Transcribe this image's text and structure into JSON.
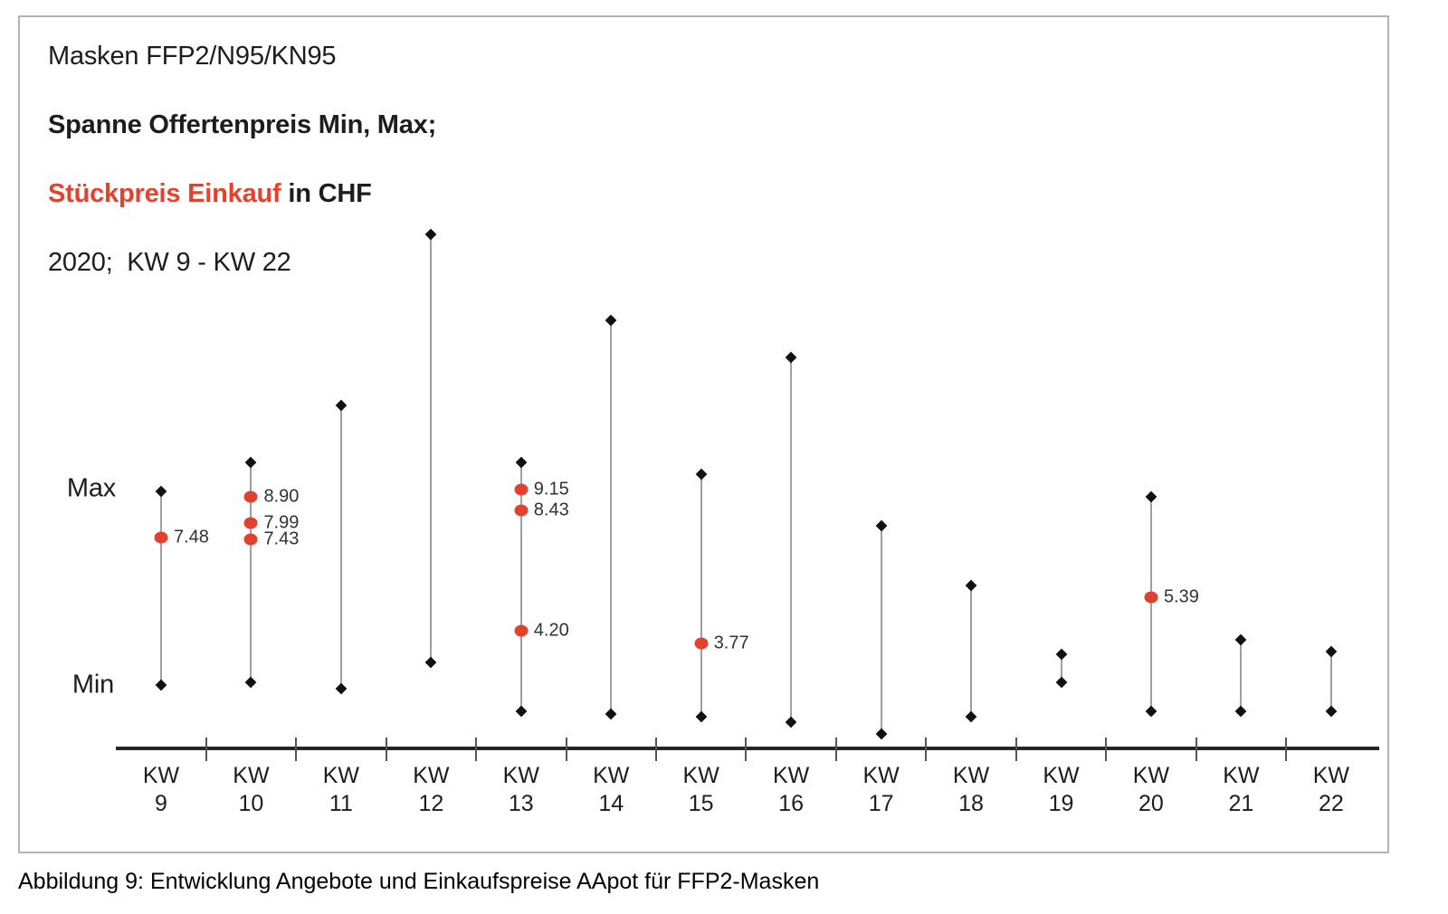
{
  "title": {
    "line1": "Masken FFP2/N95/KN95",
    "line2": "Spanne Offertenpreis Min, Max;",
    "line3_red": "Stückpreis Einkauf",
    "line3_rest": " in CHF",
    "line4": "2020;  KW 9 - KW 22"
  },
  "axis": {
    "max_label": "Max",
    "min_label": "Min"
  },
  "caption": "Abbildung 9: Entwicklung Angebote und Einkaufspreise AApot für FFP2-Masken",
  "colors": {
    "title_red": "#e8402d",
    "purchase_dot_red": "#e2412f",
    "marker_black": "#111111",
    "range_line_gray": "#a0a0a0",
    "axis_black": "#262626",
    "box_border_gray": "#b3b3b3"
  },
  "chart_data": {
    "type": "scatter",
    "subtype": "min-max-range-dumbbell",
    "title": "Masken FFP2/N95/KN95 — Spanne Offertenpreis Min, Max; Stückpreis Einkauf in CHF; 2020; KW 9 - KW 22",
    "unit": "CHF",
    "grid": false,
    "legend": "none",
    "ylim": [
      0,
      19
    ],
    "categories": [
      "KW 9",
      "KW 10",
      "KW 11",
      "KW 12",
      "KW 13",
      "KW 14",
      "KW 15",
      "KW 16",
      "KW 17",
      "KW 18",
      "KW 19",
      "KW 20",
      "KW 21",
      "KW 22"
    ],
    "series": [
      {
        "name": "Offertenpreis Max",
        "values": [
          9.1,
          10.1,
          12.1,
          18.1,
          10.1,
          15.1,
          9.7,
          13.8,
          7.9,
          5.8,
          3.4,
          8.9,
          3.9,
          3.5
        ]
      },
      {
        "name": "Offertenpreis Min",
        "values": [
          2.3,
          2.4,
          2.2,
          3.1,
          1.4,
          1.3,
          1.2,
          1.0,
          0.6,
          1.2,
          2.4,
          1.4,
          1.4,
          1.4
        ]
      },
      {
        "name": "Stückpreis Einkauf",
        "points_per_category": [
          [
            7.48
          ],
          [
            8.9,
            7.99,
            7.43
          ],
          [],
          [],
          [
            9.15,
            8.43,
            4.2
          ],
          [],
          [
            3.77
          ],
          [],
          [],
          [],
          [],
          [
            5.39
          ],
          [],
          []
        ],
        "point_labels_per_category": [
          [
            "7.48"
          ],
          [
            "8.90",
            "7.99",
            "7.43"
          ],
          [],
          [],
          [
            "9.15",
            "8.43",
            "4.20"
          ],
          [],
          [
            "3.77"
          ],
          [],
          [],
          [],
          [],
          [
            "5.39"
          ],
          [],
          []
        ]
      }
    ]
  }
}
